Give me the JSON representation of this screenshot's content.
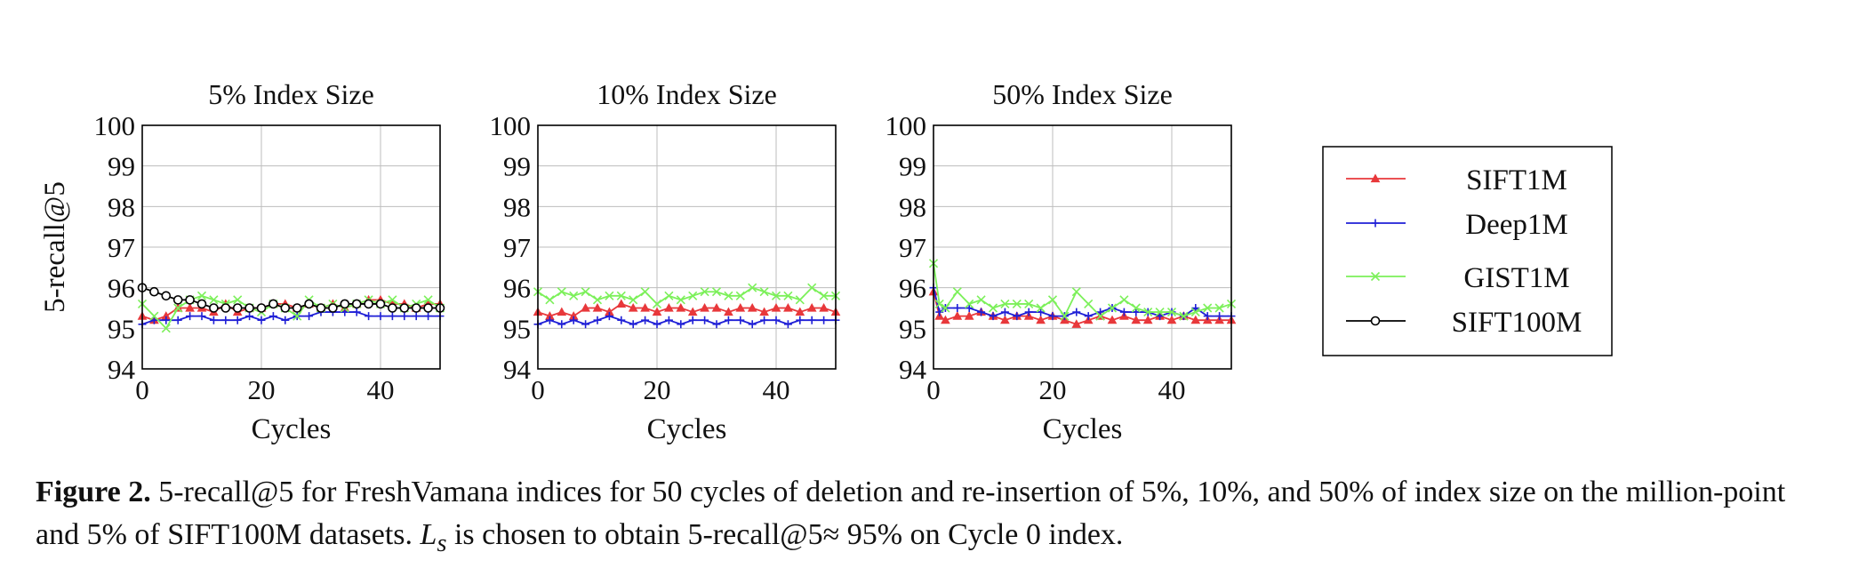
{
  "figure": {
    "ylabel": "5-recall@5",
    "caption": {
      "label": "Figure 2.",
      "text_a": "5-recall@5 for FreshVamana indices for 50 cycles of deletion and re-insertion of 5%, 10%, and 50% of index size on the million-point and 5% of SIFT100M datasets.",
      "var": "L",
      "var_sub": "s",
      "text_b": "is chosen to obtain 5-recall@5≈ 95% on Cycle 0 index."
    },
    "legend": [
      {
        "name": "SIFT1M",
        "color": "#e8383b",
        "marker": "triangle"
      },
      {
        "name": "Deep1M",
        "color": "#1f1fd6",
        "marker": "plus"
      },
      {
        "name": "GIST1M",
        "color": "#7cf05a",
        "marker": "cross"
      },
      {
        "name": "SIFT100M",
        "color": "#000000",
        "marker": "circle"
      }
    ]
  },
  "chart_data": [
    {
      "type": "line",
      "title": "5% Index Size",
      "xlabel": "Cycles",
      "ylabel": "5-recall@5",
      "xlim": [
        0,
        50
      ],
      "ylim": [
        94,
        100
      ],
      "xticks": [
        0,
        20,
        40
      ],
      "yticks": [
        94,
        95,
        96,
        97,
        98,
        99,
        100
      ],
      "grid": true,
      "x": [
        0,
        2,
        4,
        6,
        8,
        10,
        12,
        14,
        16,
        18,
        20,
        22,
        24,
        26,
        28,
        30,
        32,
        34,
        36,
        38,
        40,
        42,
        44,
        46,
        48,
        50
      ],
      "series": [
        {
          "name": "SIFT1M",
          "values": [
            95.3,
            95.2,
            95.3,
            95.5,
            95.5,
            95.5,
            95.4,
            95.6,
            95.4,
            95.5,
            95.5,
            95.6,
            95.6,
            95.5,
            95.6,
            95.5,
            95.6,
            95.5,
            95.6,
            95.7,
            95.7,
            95.6,
            95.6,
            95.5,
            95.6,
            95.6
          ]
        },
        {
          "name": "Deep1M",
          "values": [
            95.1,
            95.2,
            95.2,
            95.2,
            95.3,
            95.3,
            95.2,
            95.2,
            95.2,
            95.3,
            95.2,
            95.3,
            95.2,
            95.3,
            95.3,
            95.4,
            95.4,
            95.4,
            95.4,
            95.3,
            95.3,
            95.3,
            95.3,
            95.3,
            95.3,
            95.3
          ]
        },
        {
          "name": "GIST1M",
          "values": [
            95.6,
            95.3,
            95.0,
            95.5,
            95.7,
            95.8,
            95.7,
            95.6,
            95.7,
            95.5,
            95.4,
            95.6,
            95.5,
            95.3,
            95.7,
            95.5,
            95.6,
            95.5,
            95.6,
            95.7,
            95.6,
            95.7,
            95.5,
            95.6,
            95.7,
            95.5
          ]
        },
        {
          "name": "SIFT100M",
          "values": [
            96.0,
            95.9,
            95.8,
            95.7,
            95.7,
            95.6,
            95.5,
            95.5,
            95.5,
            95.5,
            95.5,
            95.6,
            95.5,
            95.5,
            95.6,
            95.5,
            95.5,
            95.6,
            95.6,
            95.6,
            95.6,
            95.5,
            95.5,
            95.5,
            95.5,
            95.5
          ]
        }
      ]
    },
    {
      "type": "line",
      "title": "10% Index Size",
      "xlabel": "Cycles",
      "xlim": [
        0,
        50
      ],
      "ylim": [
        94,
        100
      ],
      "xticks": [
        0,
        20,
        40
      ],
      "yticks": [
        94,
        95,
        96,
        97,
        98,
        99,
        100
      ],
      "grid": true,
      "x": [
        0,
        2,
        4,
        6,
        8,
        10,
        12,
        14,
        16,
        18,
        20,
        22,
        24,
        26,
        28,
        30,
        32,
        34,
        36,
        38,
        40,
        42,
        44,
        46,
        48,
        50
      ],
      "series": [
        {
          "name": "SIFT1M",
          "values": [
            95.4,
            95.3,
            95.4,
            95.3,
            95.5,
            95.5,
            95.4,
            95.6,
            95.5,
            95.5,
            95.4,
            95.5,
            95.5,
            95.4,
            95.5,
            95.5,
            95.4,
            95.5,
            95.5,
            95.4,
            95.5,
            95.5,
            95.4,
            95.5,
            95.5,
            95.4
          ]
        },
        {
          "name": "Deep1M",
          "values": [
            95.1,
            95.2,
            95.1,
            95.2,
            95.1,
            95.2,
            95.3,
            95.2,
            95.1,
            95.2,
            95.1,
            95.2,
            95.1,
            95.2,
            95.2,
            95.1,
            95.2,
            95.2,
            95.1,
            95.2,
            95.2,
            95.1,
            95.2,
            95.2,
            95.2,
            95.2
          ]
        },
        {
          "name": "GIST1M",
          "values": [
            95.9,
            95.7,
            95.9,
            95.8,
            95.9,
            95.7,
            95.8,
            95.8,
            95.7,
            95.9,
            95.6,
            95.8,
            95.7,
            95.8,
            95.9,
            95.9,
            95.8,
            95.8,
            96.0,
            95.9,
            95.8,
            95.8,
            95.7,
            96.0,
            95.8,
            95.8
          ]
        }
      ]
    },
    {
      "type": "line",
      "title": "50% Index Size",
      "xlabel": "Cycles",
      "xlim": [
        0,
        50
      ],
      "ylim": [
        94,
        100
      ],
      "xticks": [
        0,
        20,
        40
      ],
      "yticks": [
        94,
        95,
        96,
        97,
        98,
        99,
        100
      ],
      "grid": true,
      "x": [
        0,
        1,
        2,
        4,
        6,
        8,
        10,
        12,
        14,
        16,
        18,
        20,
        22,
        24,
        26,
        28,
        30,
        32,
        34,
        36,
        38,
        40,
        42,
        44,
        46,
        48,
        50
      ],
      "series": [
        {
          "name": "SIFT1M",
          "values": [
            95.9,
            95.3,
            95.2,
            95.3,
            95.3,
            95.4,
            95.3,
            95.2,
            95.3,
            95.3,
            95.2,
            95.3,
            95.2,
            95.1,
            95.2,
            95.3,
            95.2,
            95.3,
            95.2,
            95.2,
            95.3,
            95.2,
            95.3,
            95.2,
            95.2,
            95.2,
            95.2
          ]
        },
        {
          "name": "Deep1M",
          "values": [
            96.0,
            95.4,
            95.5,
            95.5,
            95.5,
            95.4,
            95.3,
            95.4,
            95.3,
            95.4,
            95.4,
            95.3,
            95.3,
            95.4,
            95.3,
            95.4,
            95.5,
            95.4,
            95.4,
            95.4,
            95.3,
            95.4,
            95.3,
            95.5,
            95.3,
            95.3,
            95.3
          ]
        },
        {
          "name": "GIST1M",
          "values": [
            96.6,
            95.6,
            95.5,
            95.9,
            95.6,
            95.7,
            95.5,
            95.6,
            95.6,
            95.6,
            95.5,
            95.7,
            95.3,
            95.9,
            95.6,
            95.3,
            95.5,
            95.7,
            95.5,
            95.4,
            95.4,
            95.4,
            95.3,
            95.4,
            95.5,
            95.5,
            95.6
          ]
        }
      ]
    }
  ]
}
